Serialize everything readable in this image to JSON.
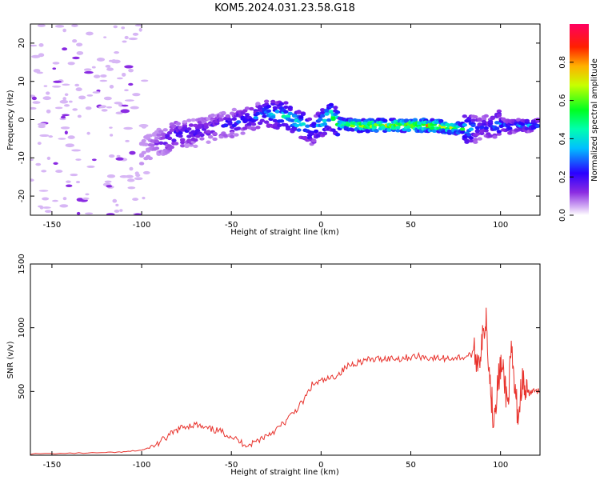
{
  "title": "KOM5.2024.031.23.58.G18",
  "chart_data": [
    {
      "type": "heatmap",
      "name": "spectrogram",
      "xlabel": "Height of straight line (km)",
      "ylabel": "Frequency (Hz)",
      "xlim": [
        -162,
        122
      ],
      "ylim": [
        -25,
        25
      ],
      "xticks": [
        -150,
        -100,
        -50,
        0,
        50,
        100
      ],
      "yticks": [
        -20,
        -10,
        0,
        10,
        20
      ],
      "colorbar": {
        "label": "Normalized spectral amplitude",
        "ticks": [
          0.0,
          0.2,
          0.4,
          0.6,
          0.8
        ],
        "range": [
          0,
          1
        ],
        "colormap": "gist_rainbow_r"
      },
      "ridge": {
        "x": [
          -100,
          -90,
          -80,
          -70,
          -60,
          -50,
          -40,
          -30,
          -20,
          -10,
          -5,
          0,
          5,
          10,
          20,
          30,
          40,
          50,
          60,
          70,
          80,
          85,
          90,
          95,
          100,
          105,
          110,
          115,
          122
        ],
        "y": [
          -8,
          -6,
          -4,
          -3.5,
          -2,
          -1,
          0,
          1.5,
          1,
          -1.5,
          -3,
          -1,
          1,
          -1,
          -1.5,
          -1.5,
          -1.5,
          -1.5,
          -1.5,
          -2,
          -2.5,
          -2.5,
          -2,
          -2,
          -1,
          -2,
          -1.5,
          -1.5,
          -1.5
        ],
        "amplitude": [
          0.05,
          0.15,
          0.25,
          0.2,
          0.2,
          0.25,
          0.25,
          0.35,
          0.45,
          0.4,
          0.3,
          0.4,
          0.55,
          0.6,
          0.65,
          0.7,
          0.7,
          0.75,
          0.75,
          0.7,
          0.5,
          0.3,
          0.2,
          0.25,
          0.35,
          0.3,
          0.3,
          0.35,
          0.3
        ]
      }
    },
    {
      "type": "line",
      "name": "snr",
      "xlabel": "Height of straight line (km)",
      "ylabel": "SNR (v/v)",
      "xlim": [
        -162,
        122
      ],
      "ylim": [
        0,
        1500
      ],
      "xticks": [
        -150,
        -100,
        -50,
        0,
        50,
        100
      ],
      "yticks": [
        500,
        1000,
        1500
      ],
      "color": "#e8322c",
      "x": [
        -162,
        -140,
        -120,
        -110,
        -100,
        -95,
        -90,
        -85,
        -80,
        -75,
        -70,
        -65,
        -60,
        -55,
        -50,
        -45,
        -40,
        -35,
        -30,
        -25,
        -20,
        -15,
        -10,
        -5,
        0,
        5,
        10,
        15,
        20,
        25,
        30,
        35,
        40,
        45,
        50,
        55,
        60,
        65,
        70,
        75,
        80,
        85,
        88,
        90,
        92,
        94,
        96,
        98,
        100,
        102,
        104,
        106,
        108,
        110,
        112,
        114,
        116,
        118,
        122
      ],
      "y": [
        10,
        15,
        20,
        25,
        40,
        60,
        100,
        150,
        200,
        230,
        240,
        210,
        200,
        180,
        150,
        100,
        80,
        120,
        160,
        200,
        260,
        340,
        420,
        550,
        580,
        600,
        640,
        700,
        730,
        745,
        750,
        760,
        760,
        760,
        770,
        775,
        765,
        760,
        760,
        765,
        770,
        800,
        750,
        900,
        1100,
        600,
        300,
        500,
        700,
        600,
        400,
        800,
        500,
        300,
        600,
        480,
        490,
        500,
        500
      ]
    }
  ]
}
